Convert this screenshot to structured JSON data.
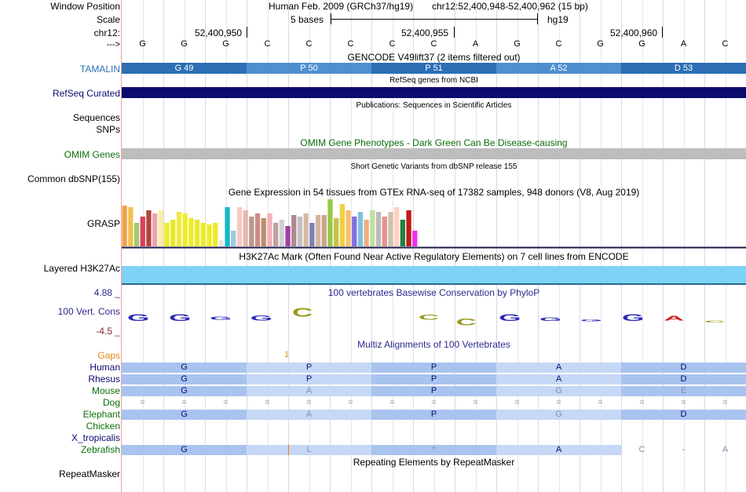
{
  "colors": {
    "tamalin": "#2c6fb5",
    "tamalin_light": "#4f8fcf",
    "refseq": "#0b0b6e",
    "omim": "#bdbdbd",
    "h3k27ac": "#7fd2f5",
    "phylop_blue": "#2b2bb8",
    "phylop_olive": "#9a9a1a",
    "phylop_red": "#cc2222"
  },
  "labels": {
    "window_position": "Window Position",
    "scale": "Scale",
    "chr": "chr12:",
    "arrow": "--->",
    "tamalin": "TAMALIN",
    "refseq": "RefSeq Curated",
    "sequences": "Sequences",
    "snps": "SNPs",
    "omim": "OMIM Genes",
    "dbsnp": "Common dbSNP(155)",
    "grasp": "GRASP",
    "h3k27ac": "Layered H3K27Ac",
    "cons_max": "4.88 _",
    "cons": "100 Vert. Cons",
    "cons_min": "-4.5 _",
    "gaps": "Gaps",
    "human": "Human",
    "rhesus": "Rhesus",
    "mouse": "Mouse",
    "dog": "Dog",
    "elephant": "Elephant",
    "chicken": "Chicken",
    "xtrop": "X_tropicalis",
    "zebrafish": "Zebrafish",
    "repeatmasker": "RepeatMasker"
  },
  "header": {
    "assembly": "Human Feb. 2009 (GRCh37/hg19)",
    "position": "chr12:52,400,948-52,400,962 (15 bp)",
    "scale_text": "5 bases",
    "scale_db": "hg19",
    "pos1": "52,400,950",
    "pos2": "52,400,955",
    "pos3": "52,400,960"
  },
  "bases": [
    "G",
    "G",
    "G",
    "C",
    "C",
    "C",
    "C",
    "C",
    "A",
    "G",
    "C",
    "G",
    "G",
    "A",
    "C"
  ],
  "tracks": {
    "gencode": "GENCODE V49lift37 (2 items filtered out)",
    "refseq_title": "RefSeq genes from NCBI",
    "pubs": "Publications: Sequences in Scientific Articles",
    "omim_title": "OMIM Gene Phenotypes - Dark Green Can Be Disease-causing",
    "dbsnp_title": "Short Genetic Variants from dbSNP release 155",
    "gtex_title": "Gene Expression in 54 tissues from GTEx RNA-seq of 17382 samples, 948 donors (V8, Aug 2019)",
    "h3k_title": "H3K27Ac Mark (Often Found Near Active Regulatory Elements) on 7 cell lines from ENCODE",
    "phylop_title": "100 vertebrates Basewise Conservation by PhyloP",
    "multiz_title": "Multiz Alignments of 100 Vertebrates",
    "gaps_mark": "1",
    "rmsk_title": "Repeating Elements by RepeatMasker"
  },
  "tamalin_aa": [
    "G 49",
    "P 50",
    "P 51",
    "A 52",
    "D 53"
  ],
  "gtex": {
    "heights": [
      52,
      50,
      30,
      38,
      46,
      42,
      46,
      30,
      34,
      44,
      42,
      36,
      34,
      30,
      28,
      30,
      8,
      50,
      20,
      50,
      46,
      38,
      42,
      36,
      42,
      30,
      34,
      26,
      40,
      38,
      42,
      30,
      40,
      40,
      60,
      36,
      54,
      46,
      38,
      44,
      34,
      46,
      44,
      38,
      44,
      50,
      34,
      46,
      20
    ],
    "colors": [
      "#f2a14a",
      "#f1c04d",
      "#a7c870",
      "#d8405a",
      "#b3443f",
      "#f0a2aa",
      "#f7f0a0",
      "#ecec2a",
      "#e8e828",
      "#ece94a",
      "#f0ec2c",
      "#ecec2a",
      "#eae82c",
      "#ecec2c",
      "#ecec2a",
      "#ecec2a",
      "#e6e6e6",
      "#14b8c8",
      "#9ec8e0",
      "#f4c9c5",
      "#e8b6b0",
      "#b89a8a",
      "#d08a8a",
      "#b8906c",
      "#f1b0b8",
      "#c0a0a0",
      "#d0d0d0",
      "#a040a0",
      "#b08890",
      "#c0c0c0",
      "#d6b8a0",
      "#8080b8",
      "#d0b8a0",
      "#cca48c",
      "#98c848",
      "#c8c048",
      "#f0d040",
      "#fcbe70",
      "#8070e0",
      "#80c0e0",
      "#e8b080",
      "#c0e0a0",
      "#bcbcbc",
      "#e89090",
      "#d0c0b0",
      "#ffd0c0",
      "#208040",
      "#c01818",
      "#f030f0"
    ]
  },
  "alignments": {
    "human": [
      "G",
      "P",
      "P",
      "A",
      "D"
    ],
    "rhesus": [
      "G",
      "P",
      "P",
      "A",
      "D"
    ],
    "mouse": [
      "G",
      "A",
      "P",
      "G",
      "E"
    ],
    "dog_marks": [
      "=",
      "=",
      "=",
      "=",
      "=",
      "=",
      "=",
      "=",
      "=",
      "=",
      "=",
      "=",
      "=",
      "=",
      "="
    ],
    "elephant": [
      "G",
      "A",
      "P",
      "G",
      "D"
    ],
    "zebrafish": [
      "G",
      "L",
      "*",
      "A",
      "C",
      "-",
      "A"
    ]
  }
}
